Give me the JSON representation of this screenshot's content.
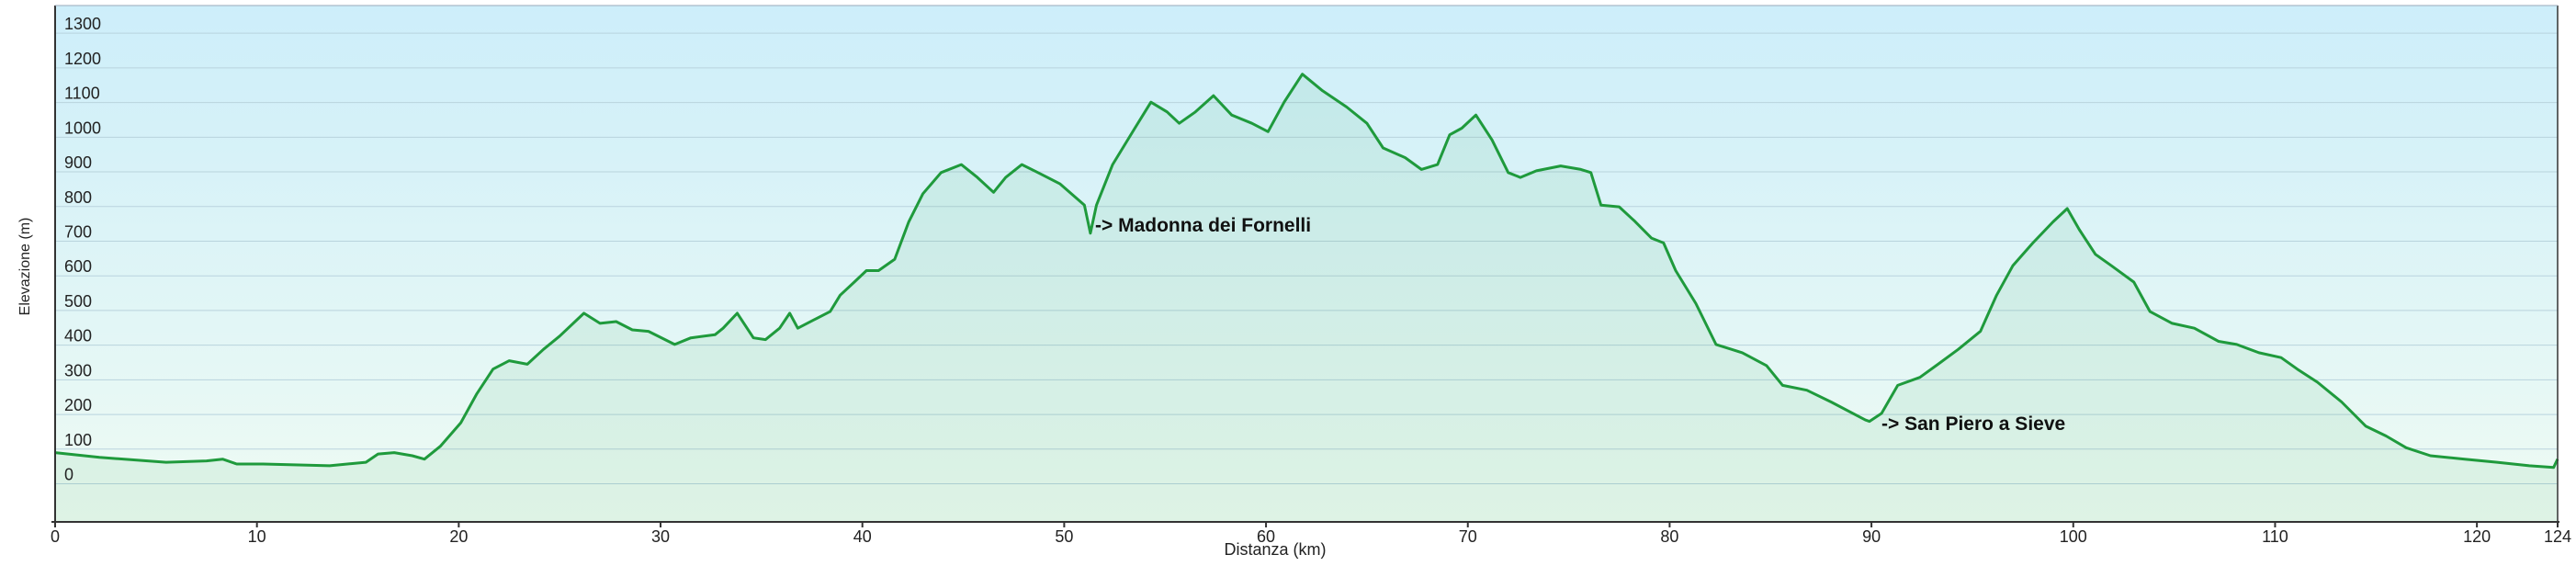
{
  "chart_data": {
    "type": "area-line",
    "x_label": "Distanza  (km)",
    "y_label": "Elevazione (m)",
    "annotations": [
      "-> Madonna dei Fornelli",
      "-> San Piero a Sieve"
    ],
    "color": "#1f9a3c",
    "grid": true,
    "xlim": [
      0,
      124
    ],
    "ylim": [
      -110,
      1380
    ],
    "xticks": [
      0,
      10,
      20,
      30,
      40,
      50,
      60,
      70,
      80,
      90,
      100,
      110,
      120,
      124
    ],
    "yticks": [
      0,
      100,
      200,
      300,
      400,
      500,
      600,
      700,
      800,
      900,
      1000,
      1100,
      1200,
      1300
    ],
    "x": [
      0,
      2.2,
      5.5,
      7.5,
      8.3,
      9,
      10.3,
      13.6,
      15.4,
      16,
      16.8,
      17.7,
      18.3,
      19.1,
      20.1,
      20.9,
      21.7,
      22.5,
      23.4,
      24.2,
      25,
      26.2,
      27,
      27.8,
      28.6,
      29.4,
      30.7,
      31.5,
      32.7,
      33.1,
      33.8,
      34.6,
      35.2,
      35.9,
      36.4,
      36.8,
      37.6,
      38.4,
      38.9,
      39.6,
      40.2,
      40.8,
      41.6,
      42.3,
      43,
      43.9,
      44.9,
      45.7,
      46.5,
      47.1,
      47.9,
      48.7,
      49.8,
      51,
      51.3,
      51.6,
      52.4,
      53.5,
      54.3,
      55.1,
      55.7,
      56.5,
      57.4,
      58.3,
      59.3,
      60.1,
      60.9,
      61.8,
      62.8,
      64,
      65,
      65.8,
      66.9,
      67.7,
      68.5,
      69.1,
      69.7,
      70.4,
      71.2,
      72,
      72.6,
      73.4,
      74.6,
      75.6,
      76.1,
      76.6,
      77.5,
      78.3,
      79.1,
      79.7,
      80.3,
      81.3,
      82.3,
      83.6,
      84.8,
      85.6,
      86.8,
      88,
      89.7,
      89.9,
      90.5,
      91.3,
      92.4,
      93.3,
      94.3,
      95.4,
      96.2,
      97,
      98,
      99,
      99.7,
      100.3,
      101.1,
      101.9,
      103,
      103.8,
      104.9,
      106,
      107.2,
      108.1,
      109.2,
      110.3,
      111.1,
      112.1,
      113.3,
      114.5,
      115.5,
      116.5,
      117.7,
      119.4,
      121,
      122.6,
      123.8,
      124
    ],
    "values": [
      90,
      76,
      62,
      66,
      71,
      57,
      57,
      52,
      62,
      86,
      90,
      81,
      71,
      109,
      176,
      260,
      331,
      355,
      345,
      388,
      426,
      492,
      463,
      468,
      444,
      440,
      402,
      421,
      430,
      449,
      492,
      421,
      416,
      449,
      492,
      449,
      473,
      497,
      544,
      582,
      615,
      615,
      648,
      756,
      837,
      898,
      921,
      884,
      841,
      884,
      921,
      898,
      865,
      804,
      723,
      804,
      921,
      1026,
      1101,
      1073,
      1040,
      1073,
      1120,
      1064,
      1040,
      1016,
      1101,
      1182,
      1134,
      1087,
      1040,
      969,
      941,
      907,
      921,
      1007,
      1026,
      1064,
      992,
      898,
      884,
      903,
      917,
      907,
      898,
      804,
      799,
      756,
      709,
      695,
      615,
      520,
      402,
      378,
      341,
      284,
      270,
      236,
      184,
      180,
      203,
      284,
      307,
      345,
      388,
      440,
      544,
      629,
      695,
      756,
      794,
      733,
      662,
      629,
      582,
      497,
      463,
      449,
      411,
      402,
      378,
      364,
      331,
      293,
      236,
      166,
      138,
      104,
      81,
      71,
      62,
      52,
      47,
      71
    ]
  }
}
